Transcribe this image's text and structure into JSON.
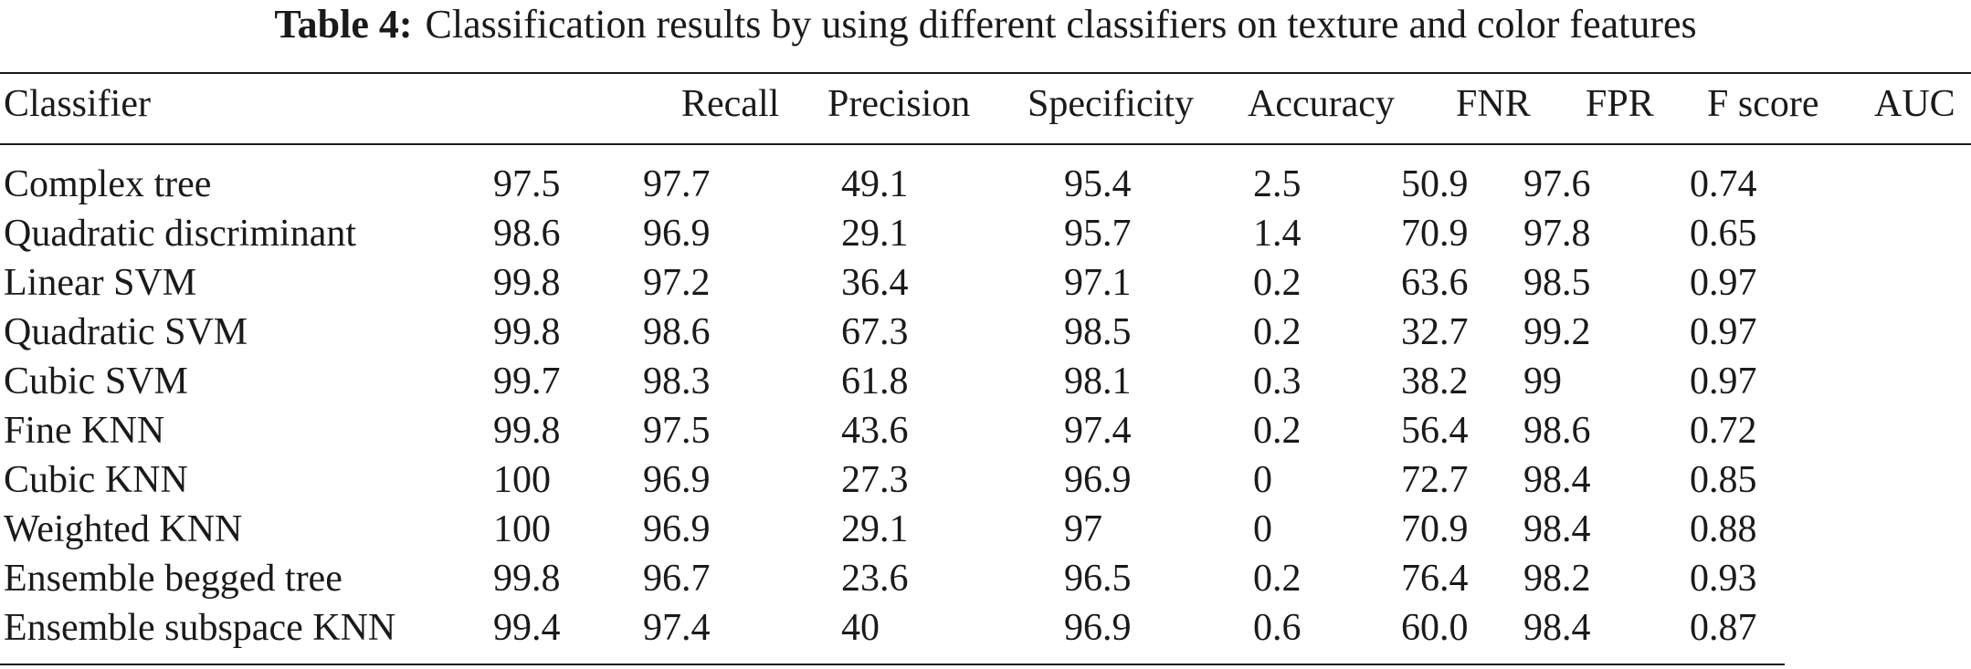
{
  "caption": {
    "label": "Table 4:",
    "text": "Classification results by using different classifiers on texture and color features"
  },
  "table": {
    "headers": [
      "Classifier",
      "Recall",
      "Precision",
      "Specificity",
      "Accuracy",
      "FNR",
      "FPR",
      "F score",
      "AUC"
    ],
    "rows": [
      [
        "Complex tree",
        "97.5",
        "97.7",
        "49.1",
        "95.4",
        "2.5",
        "50.9",
        "97.6",
        "0.74"
      ],
      [
        "Quadratic discriminant",
        "98.6",
        "96.9",
        "29.1",
        "95.7",
        "1.4",
        "70.9",
        "97.8",
        "0.65"
      ],
      [
        "Linear SVM",
        "99.8",
        "97.2",
        "36.4",
        "97.1",
        "0.2",
        "63.6",
        "98.5",
        "0.97"
      ],
      [
        "Quadratic SVM",
        "99.8",
        "98.6",
        "67.3",
        "98.5",
        "0.2",
        "32.7",
        "99.2",
        "0.97"
      ],
      [
        "Cubic SVM",
        "99.7",
        "98.3",
        "61.8",
        "98.1",
        "0.3",
        "38.2",
        "99",
        "0.97"
      ],
      [
        "Fine KNN",
        "99.8",
        "97.5",
        "43.6",
        "97.4",
        "0.2",
        "56.4",
        "98.6",
        "0.72"
      ],
      [
        "Cubic KNN",
        "100",
        "96.9",
        "27.3",
        "96.9",
        "0",
        "72.7",
        "98.4",
        "0.85"
      ],
      [
        "Weighted KNN",
        "100",
        "96.9",
        "29.1",
        "97",
        "0",
        "70.9",
        "98.4",
        "0.88"
      ],
      [
        "Ensemble begged tree",
        "99.8",
        "96.7",
        "23.6",
        "96.5",
        "0.2",
        "76.4",
        "98.2",
        "0.93"
      ],
      [
        "Ensemble subspace KNN",
        "99.4",
        "97.4",
        "40",
        "96.9",
        "0.6",
        "60.0",
        "98.4",
        "0.87"
      ]
    ]
  }
}
